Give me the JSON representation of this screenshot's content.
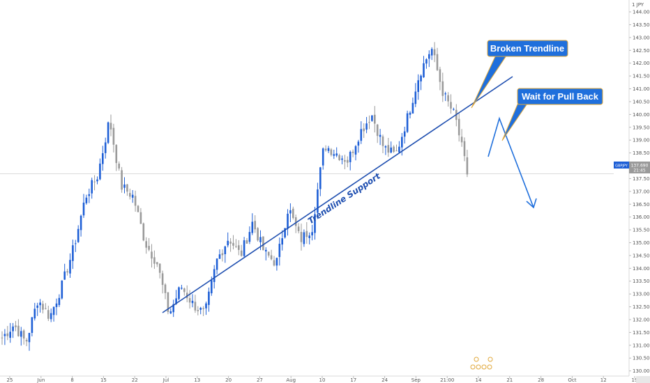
{
  "chart_data": {
    "type": "candlestick",
    "title": "",
    "currency_label": "1 JPY",
    "symbol_tag": "GBPJPY",
    "price_tag": "137.690",
    "time_tag": "21:45",
    "ylim": [
      129.8,
      144.3
    ],
    "y_ticks": [
      130.0,
      130.5,
      131.0,
      131.5,
      132.0,
      132.5,
      133.0,
      133.5,
      134.0,
      134.5,
      135.0,
      135.5,
      136.0,
      136.5,
      137.0,
      137.5,
      138.0,
      138.5,
      139.0,
      139.5,
      140.0,
      140.5,
      141.0,
      141.5,
      142.0,
      142.5,
      143.0,
      143.5,
      144.0
    ],
    "x_ticks": [
      "25",
      "Jun",
      "8",
      "15",
      "22",
      "Jul",
      "13",
      "20",
      "27",
      "Aug",
      "10",
      "17",
      "24",
      "Sep",
      "21:00",
      "14",
      "21",
      "28",
      "Oct",
      "12",
      "19"
    ],
    "up_color": "#1e5fd6",
    "down_color": "#9a9a9a",
    "anchors": [
      131.3,
      131.8,
      131.1,
      132.8,
      132.1,
      133.3,
      134.8,
      136.8,
      137.6,
      139.8,
      137.2,
      136.8,
      135.0,
      134.2,
      132.2,
      133.3,
      132.6,
      132.2,
      134.3,
      135.2,
      134.5,
      135.8,
      134.6,
      134.2,
      136.4,
      135.1,
      135.6,
      138.8,
      138.5,
      138.2,
      139.3,
      140.0,
      138.7,
      138.4,
      139.9,
      141.6,
      142.6,
      140.8,
      139.9,
      137.7
    ],
    "trendline_label": "Trendline Support",
    "annotations": [
      "Broken Trendline",
      "Wait for Pull Back"
    ]
  }
}
